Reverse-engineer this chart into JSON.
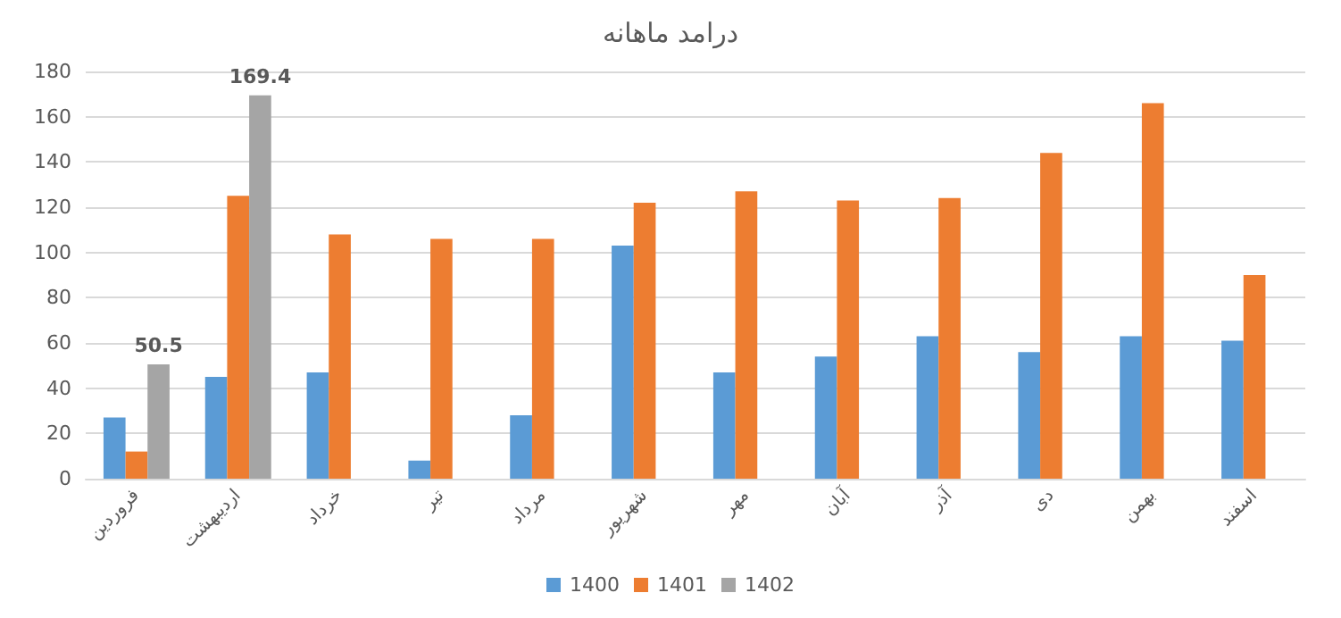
{
  "chart_data": {
    "type": "bar",
    "title": "درامد ماهانه",
    "categories": [
      "فروردین",
      "اردیبهشت",
      "خرداد",
      "تیر",
      "مرداد",
      "شهریور",
      "مهر",
      "آبان",
      "آذر",
      "دی",
      "بهمن",
      "اسفند"
    ],
    "series": [
      {
        "name": "1400",
        "color": "#5b9bd5",
        "values": [
          27,
          45,
          47,
          8,
          28,
          103,
          47,
          54,
          63,
          56,
          63,
          61
        ]
      },
      {
        "name": "1401",
        "color": "#ed7d31",
        "values": [
          12,
          125,
          108,
          106,
          106,
          122,
          127,
          123,
          124,
          144,
          166,
          90
        ]
      },
      {
        "name": "1402",
        "color": "#a5a5a5",
        "values": [
          50.5,
          169.4,
          null,
          null,
          null,
          null,
          null,
          null,
          null,
          null,
          null,
          null
        ],
        "value_labels": [
          "50.5",
          "169.4",
          null,
          null,
          null,
          null,
          null,
          null,
          null,
          null,
          null,
          null
        ]
      }
    ],
    "ylim": [
      0,
      180
    ],
    "yticks": [
      0,
      20,
      40,
      60,
      80,
      100,
      120,
      140,
      160,
      180
    ],
    "grid": "y",
    "legend": "bottom"
  }
}
